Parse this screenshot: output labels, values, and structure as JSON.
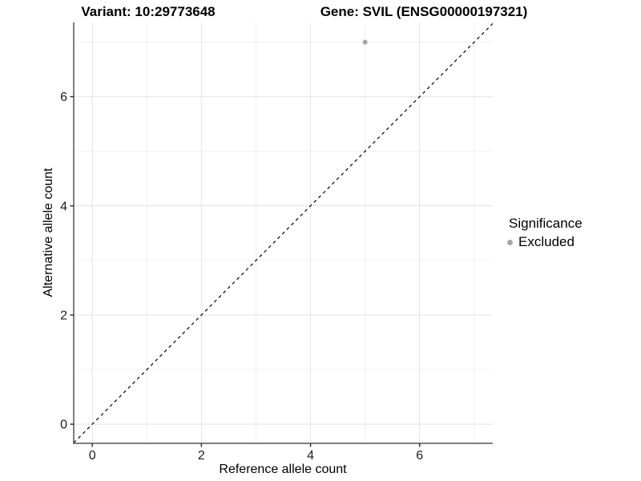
{
  "titles": {
    "variant": "Variant: 10:29773648",
    "gene": "Gene: SVIL (ENSG00000197321)"
  },
  "chart_data": {
    "type": "scatter",
    "title": "Variant: 10:29773648   Gene: SVIL (ENSG00000197321)",
    "xlabel": "Reference allele count",
    "ylabel": "Alternative allele count",
    "xlim": [
      -0.34,
      7.34
    ],
    "ylim": [
      -0.35,
      7.36
    ],
    "xticks": [
      0,
      2,
      4,
      6
    ],
    "yticks": [
      0,
      2,
      4,
      6
    ],
    "minor_xticks": [
      1,
      3,
      5,
      7
    ],
    "minor_yticks": [
      1,
      3,
      5,
      7
    ],
    "grid": true,
    "points": [
      {
        "x": 5,
        "y": 7,
        "series": "Excluded"
      }
    ],
    "series": [
      {
        "name": "Excluded",
        "color": "#a6a6a6"
      }
    ],
    "reference_line": {
      "type": "identity",
      "equation": "y = x",
      "style": "dashed",
      "color": "#000000"
    },
    "legend": {
      "position": "right",
      "title": "Significance",
      "items": [
        {
          "label": "Excluded",
          "color": "#a6a6a6"
        }
      ]
    }
  },
  "colors": {
    "background": "#ffffff",
    "grid_major": "#e4e4e4",
    "grid_minor": "#f0f0f0",
    "axis_line": "#555555",
    "tick_mark": "#333333",
    "tick_label": "#202020",
    "point": "#a6a6a6"
  }
}
